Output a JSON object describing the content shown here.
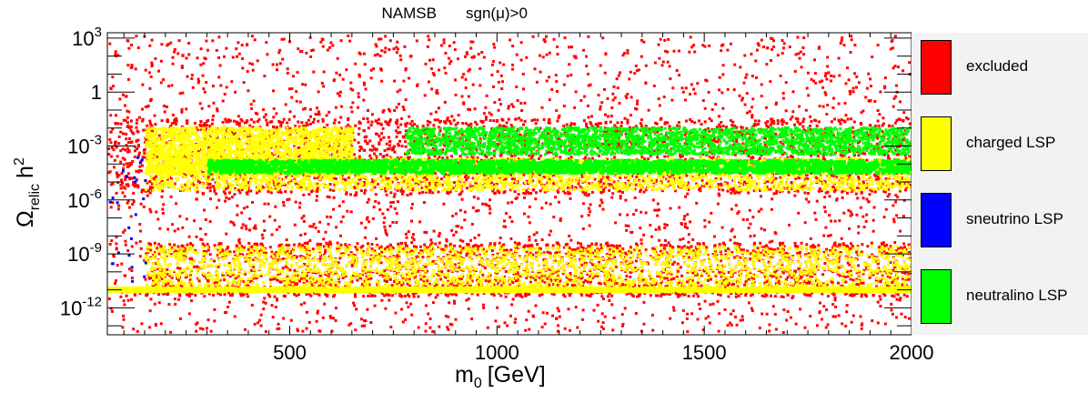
{
  "chart_data": {
    "type": "scatter",
    "title_left": "NAMSB",
    "title_right": "sgn(μ)>0",
    "xlabel": "m",
    "xlabel_sub": "0",
    "xlabel_unit": "[GeV]",
    "ylabel": "Ω",
    "ylabel_sub": "relic",
    "ylabel_tail": "h",
    "ylabel_sup": "2",
    "xlim": [
      60,
      2000
    ],
    "ylim_log10": [
      -13.5,
      3.3
    ],
    "x_ticks": [
      {
        "value": 500,
        "label": "500"
      },
      {
        "value": 1000,
        "label": "1000"
      },
      {
        "value": 1500,
        "label": "1500"
      },
      {
        "value": 2000,
        "label": "2000"
      }
    ],
    "y_ticks": [
      {
        "exp": 3,
        "base": "10",
        "sup": "3",
        "plain": ""
      },
      {
        "exp": 0,
        "base": "",
        "sup": "",
        "plain": "1"
      },
      {
        "exp": -3,
        "base": "10",
        "sup": "-3",
        "plain": ""
      },
      {
        "exp": -6,
        "base": "10",
        "sup": "-6",
        "plain": ""
      },
      {
        "exp": -9,
        "base": "10",
        "sup": "-9",
        "plain": ""
      },
      {
        "exp": -12,
        "base": "10",
        "sup": "-12",
        "plain": ""
      }
    ],
    "series": [
      {
        "name": "excluded",
        "color": "#ff0000"
      },
      {
        "name": "charged LSP",
        "color": "#ffff00"
      },
      {
        "name": "sneutrino LSP",
        "color": "#0000ff"
      },
      {
        "name": "neutralino LSP",
        "color": "#00ff00"
      }
    ],
    "regions": [
      {
        "series": "excluded",
        "x_range": [
          60,
          2000
        ],
        "log10_range": [
          -13.3,
          3.2
        ],
        "density": "scattered"
      },
      {
        "series": "excluded",
        "x_range": [
          150,
          2000
        ],
        "log10_range": [
          -11.3,
          -8.3
        ],
        "density": "dense"
      },
      {
        "series": "excluded",
        "x_range": [
          60,
          2000
        ],
        "log10_range": [
          -5.6,
          -1.4
        ],
        "density": "dense"
      },
      {
        "series": "charged LSP",
        "x_range": [
          150,
          2000
        ],
        "log10_range": [
          -11.0,
          -8.5
        ],
        "density": "scattered"
      },
      {
        "series": "charged LSP",
        "x_range": [
          150,
          2000
        ],
        "log10_range": [
          -5.4,
          -3.6
        ],
        "density": "dense"
      },
      {
        "series": "charged LSP",
        "x_range": [
          60,
          2000
        ],
        "log10_range": [
          -11.0,
          -10.8
        ],
        "density": "band"
      },
      {
        "series": "charged LSP",
        "x_range": [
          150,
          650
        ],
        "log10_range": [
          -4.5,
          -1.9
        ],
        "density": "dense"
      },
      {
        "series": "neutralino LSP",
        "x_range": [
          300,
          2000
        ],
        "log10_range": [
          -4.4,
          -3.7
        ],
        "density": "band"
      },
      {
        "series": "neutralino LSP",
        "x_range": [
          780,
          2000
        ],
        "log10_range": [
          -3.4,
          -1.9
        ],
        "density": "scattered"
      },
      {
        "series": "sneutrino LSP",
        "x_range": [
          60,
          150
        ],
        "log10_range": [
          -10.8,
          -2.0
        ],
        "density": "sparse"
      }
    ]
  },
  "legend": {
    "items": [
      {
        "label": "excluded",
        "color": "#ff0000"
      },
      {
        "label": "charged LSP",
        "color": "#ffff00"
      },
      {
        "label": "sneutrino LSP",
        "color": "#0000ff"
      },
      {
        "label": "neutralino LSP",
        "color": "#00ff00"
      }
    ]
  }
}
